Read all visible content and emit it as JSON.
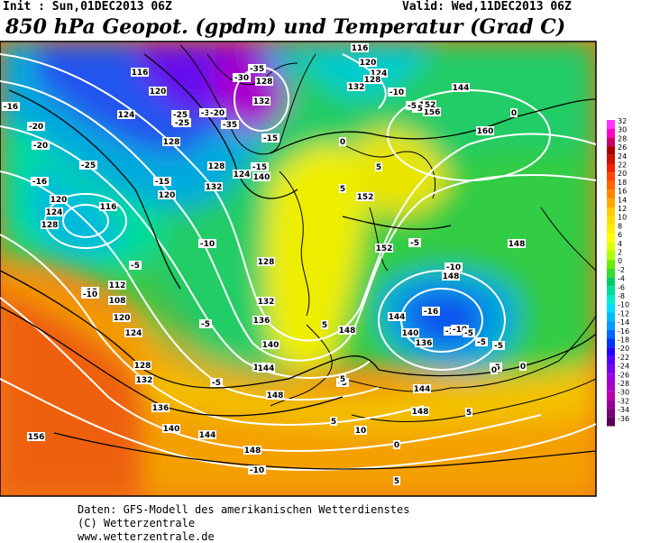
{
  "header": {
    "init": "Init : Sun,01DEC2013 06Z",
    "valid": "Valid: Wed,11DEC2013 06Z",
    "title": "850 hPa Geopot. (gpdm) und Temperatur (Grad C)"
  },
  "footer": {
    "line1": "Daten: GFS-Modell des amerikanischen Wetterdienstes",
    "line2": "(C) Wetterzentrale",
    "line3": "www.wetterzentrale.de"
  },
  "colorbar": {
    "labels": [
      "32",
      "30",
      "28",
      "26",
      "24",
      "22",
      "20",
      "18",
      "16",
      "14",
      "12",
      "10",
      "8",
      "6",
      "4",
      "2",
      "0",
      "-2",
      "-4",
      "-6",
      "-8",
      "-10",
      "-12",
      "-14",
      "-16",
      "-18",
      "-20",
      "-22",
      "-24",
      "-26",
      "-28",
      "-30",
      "-32",
      "-34",
      "-36"
    ],
    "colors": [
      "#ff33ff",
      "#ff00cc",
      "#cc0066",
      "#aa0000",
      "#cc1100",
      "#ee2200",
      "#ff4400",
      "#ff6600",
      "#ff8800",
      "#ffaa00",
      "#ffcc00",
      "#ffdd00",
      "#ffee00",
      "#ffff00",
      "#ddff00",
      "#aaff00",
      "#66ee00",
      "#33dd33",
      "#00cc66",
      "#00dd99",
      "#00eecc",
      "#00ddff",
      "#00bbff",
      "#0099ff",
      "#0066ff",
      "#0033ff",
      "#2200ff",
      "#5500ff",
      "#7700ee",
      "#9900dd",
      "#aa00cc",
      "#bb00aa",
      "#990099",
      "#770077",
      "#550055"
    ]
  },
  "geopotential_labels": [
    "116",
    "120",
    "124",
    "128",
    "128",
    "132",
    "120",
    "124",
    "120",
    "124",
    "128",
    "116",
    "112",
    "108",
    "120",
    "124",
    "128",
    "132",
    "136",
    "140",
    "144",
    "148",
    "156",
    "148",
    "144",
    "140",
    "136",
    "132",
    "128",
    "152",
    "148",
    "144",
    "152",
    "136",
    "140",
    "144",
    "148",
    "156",
    "160",
    "152",
    "144",
    "148",
    "148",
    "116",
    "120",
    "124",
    "128",
    "132",
    "128",
    "132",
    "140",
    "144"
  ],
  "temperature_labels": [
    "-16",
    "-20",
    "-20",
    "-16",
    "-15",
    "-10",
    "-5",
    "-10",
    "-25",
    "-20",
    "-25",
    "-30",
    "-35",
    "-25",
    "-30",
    "-35",
    "-20",
    "-15",
    "-15",
    "-5",
    "-10",
    "0",
    "-5",
    "0",
    "5",
    "-5",
    "5",
    "-10",
    "-5",
    "5",
    "-10",
    "-5",
    "-16",
    "-10",
    "-5",
    "-5",
    "-5",
    "0",
    "5",
    "5",
    "-5",
    "-10",
    "0",
    "5",
    "5",
    "10",
    "-10",
    "-5",
    "-5",
    "0"
  ]
}
